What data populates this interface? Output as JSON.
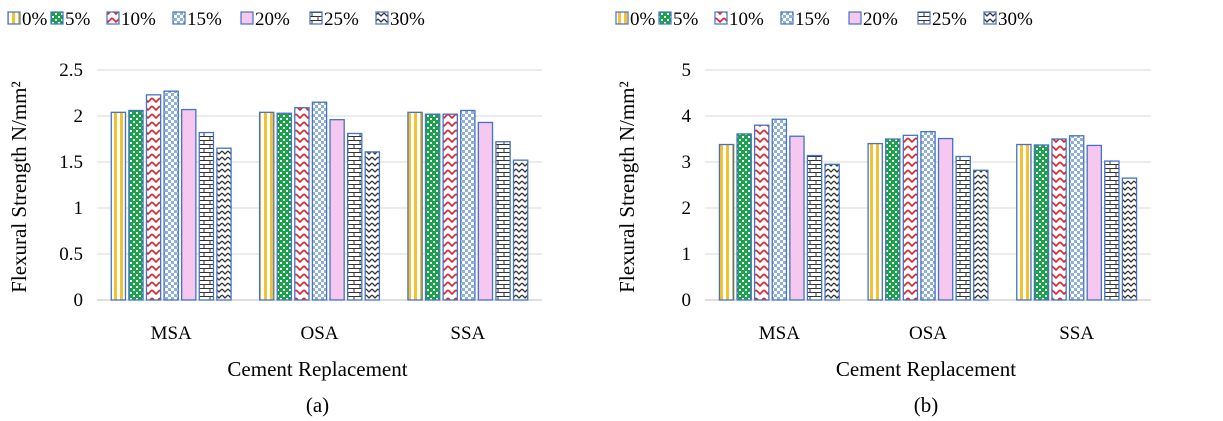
{
  "chart_data": [
    {
      "type": "bar",
      "caption": "(a)",
      "xlabel": "Cement Replacement",
      "ylabel": "Flexural Strength N/mm²",
      "categories": [
        "MSA",
        "OSA",
        "SSA"
      ],
      "ylim": [
        0,
        2.5
      ],
      "yticks": [
        "0",
        "0.5",
        "1",
        "1.5",
        "2",
        "2.5"
      ],
      "grid": true,
      "legend_position": "top",
      "series": [
        {
          "name": "0%",
          "values": [
            2.04,
            2.04,
            2.04
          ]
        },
        {
          "name": "5%",
          "values": [
            2.06,
            2.03,
            2.02
          ]
        },
        {
          "name": "10%",
          "values": [
            2.23,
            2.09,
            2.02
          ]
        },
        {
          "name": "15%",
          "values": [
            2.27,
            2.15,
            2.06
          ]
        },
        {
          "name": "20%",
          "values": [
            2.07,
            1.96,
            1.93
          ]
        },
        {
          "name": "25%",
          "values": [
            1.82,
            1.81,
            1.72
          ]
        },
        {
          "name": "30%",
          "values": [
            1.65,
            1.61,
            1.52
          ]
        }
      ]
    },
    {
      "type": "bar",
      "caption": "(b)",
      "xlabel": "Cement Replacement",
      "ylabel": "Flexural Strength N/mm²",
      "categories": [
        "MSA",
        "OSA",
        "SSA"
      ],
      "ylim": [
        0,
        5
      ],
      "yticks": [
        "0",
        "1",
        "2",
        "3",
        "4",
        "5"
      ],
      "grid": true,
      "legend_position": "top",
      "series": [
        {
          "name": "0%",
          "values": [
            3.38,
            3.4,
            3.38
          ]
        },
        {
          "name": "5%",
          "values": [
            3.61,
            3.5,
            3.37
          ]
        },
        {
          "name": "10%",
          "values": [
            3.8,
            3.58,
            3.5
          ]
        },
        {
          "name": "15%",
          "values": [
            3.93,
            3.66,
            3.57
          ]
        },
        {
          "name": "20%",
          "values": [
            3.56,
            3.51,
            3.36
          ]
        },
        {
          "name": "25%",
          "values": [
            3.14,
            3.12,
            3.02
          ]
        },
        {
          "name": "30%",
          "values": [
            2.95,
            2.82,
            2.65
          ]
        }
      ]
    }
  ],
  "series_styles": [
    {
      "pattern": "pat-vstripes-yellow",
      "border": "#4472c4"
    },
    {
      "pattern": "pat-green-dots",
      "border": "#4472c4"
    },
    {
      "pattern": "pat-red-zigzag",
      "border": "#4472c4"
    },
    {
      "pattern": "pat-blue-checker",
      "border": "#4472c4"
    },
    {
      "pattern": "pat-pink-solid",
      "border": "#4472c4"
    },
    {
      "pattern": "pat-brick",
      "border": "#4472c4"
    },
    {
      "pattern": "pat-dark-zigzag",
      "border": "#4472c4"
    }
  ],
  "colors": {
    "border": "#4472c4",
    "grid": "#d9d9d9",
    "axis": "#bfbfbf",
    "yellow": "#f2c232",
    "green": "#1aa34a",
    "red": "#e0202a",
    "pink": "#f7c8ef",
    "dark": "#333333"
  }
}
